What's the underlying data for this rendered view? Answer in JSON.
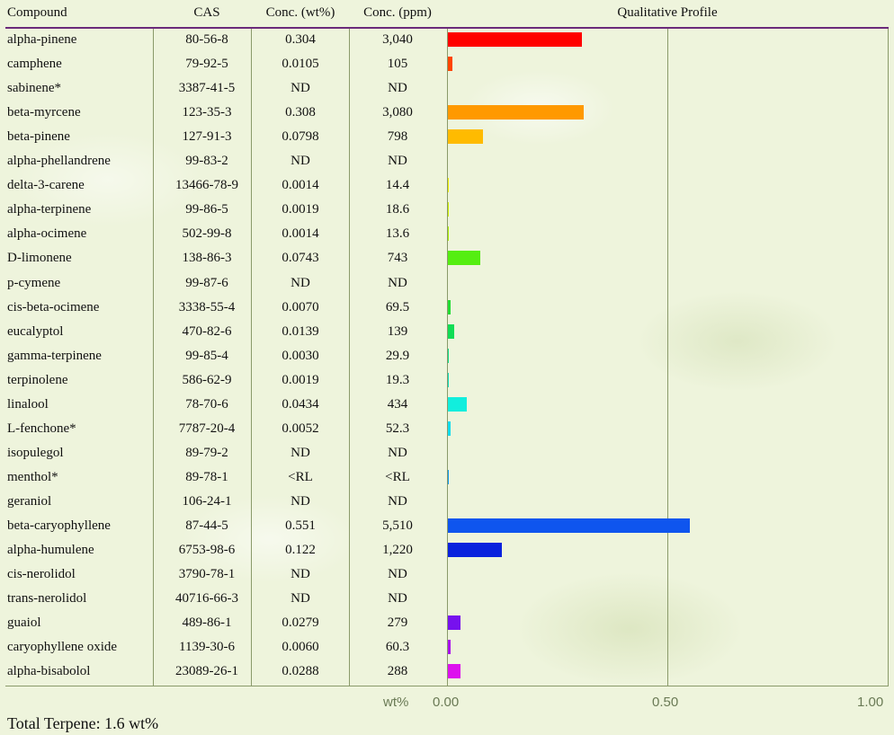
{
  "table": {
    "headers": {
      "compound": "Compound",
      "cas": "CAS",
      "conc_wt": "Conc. (wt%)",
      "conc_ppm": "Conc. (ppm)",
      "profile": "Qualitative Profile"
    },
    "rows": [
      {
        "compound": "alpha-pinene",
        "cas": "80-56-8",
        "wt": "0.304",
        "ppm": "3,040",
        "value": 0.304,
        "color": "#ff0000"
      },
      {
        "compound": "camphene",
        "cas": "79-92-5",
        "wt": "0.0105",
        "ppm": "105",
        "value": 0.0105,
        "color": "#ff4400"
      },
      {
        "compound": "sabinene*",
        "cas": "3387-41-5",
        "wt": "ND",
        "ppm": "ND",
        "value": 0,
        "color": "#ff6600"
      },
      {
        "compound": "beta-myrcene",
        "cas": "123-35-3",
        "wt": "0.308",
        "ppm": "3,080",
        "value": 0.308,
        "color": "#ff9900"
      },
      {
        "compound": "beta-pinene",
        "cas": "127-91-3",
        "wt": "0.0798",
        "ppm": "798",
        "value": 0.0798,
        "color": "#ffbb00"
      },
      {
        "compound": "alpha-phellandrene",
        "cas": "99-83-2",
        "wt": "ND",
        "ppm": "ND",
        "value": 0,
        "color": "#ffdd00"
      },
      {
        "compound": "delta-3-carene",
        "cas": "13466-78-9",
        "wt": "0.0014",
        "ppm": "14.4",
        "value": 0.0014,
        "color": "#eeee00"
      },
      {
        "compound": "alpha-terpinene",
        "cas": "99-86-5",
        "wt": "0.0019",
        "ppm": "18.6",
        "value": 0.0019,
        "color": "#ccee00"
      },
      {
        "compound": "alpha-ocimene",
        "cas": "502-99-8",
        "wt": "0.0014",
        "ppm": "13.6",
        "value": 0.0014,
        "color": "#aaee00"
      },
      {
        "compound": "D-limonene",
        "cas": "138-86-3",
        "wt": "0.0743",
        "ppm": "743",
        "value": 0.0743,
        "color": "#55ee11"
      },
      {
        "compound": "p-cymene",
        "cas": "99-87-6",
        "wt": "ND",
        "ppm": "ND",
        "value": 0,
        "color": "#33ee22"
      },
      {
        "compound": "cis-beta-ocimene",
        "cas": "3338-55-4",
        "wt": "0.0070",
        "ppm": "69.5",
        "value": 0.007,
        "color": "#22dd33"
      },
      {
        "compound": "eucalyptol",
        "cas": "470-82-6",
        "wt": "0.0139",
        "ppm": "139",
        "value": 0.0139,
        "color": "#11dd55"
      },
      {
        "compound": "gamma-terpinene",
        "cas": "99-85-4",
        "wt": "0.0030",
        "ppm": "29.9",
        "value": 0.003,
        "color": "#11dd88"
      },
      {
        "compound": "terpinolene",
        "cas": "586-62-9",
        "wt": "0.0019",
        "ppm": "19.3",
        "value": 0.0019,
        "color": "#11ddbb"
      },
      {
        "compound": "linalool",
        "cas": "78-70-6",
        "wt": "0.0434",
        "ppm": "434",
        "value": 0.0434,
        "color": "#11eedd"
      },
      {
        "compound": "L-fenchone*",
        "cas": "7787-20-4",
        "wt": "0.0052",
        "ppm": "52.3",
        "value": 0.0052,
        "color": "#11ddee"
      },
      {
        "compound": "isopulegol",
        "cas": "89-79-2",
        "wt": "ND",
        "ppm": "ND",
        "value": 0,
        "color": "#11bbee"
      },
      {
        "compound": "menthol*",
        "cas": "89-78-1",
        "wt": "<RL",
        "ppm": "<RL",
        "value": 0.0008,
        "color": "#1199ee"
      },
      {
        "compound": "geraniol",
        "cas": "106-24-1",
        "wt": "ND",
        "ppm": "ND",
        "value": 0,
        "color": "#1177ee"
      },
      {
        "compound": "beta-caryophyllene",
        "cas": "87-44-5",
        "wt": "0.551",
        "ppm": "5,510",
        "value": 0.551,
        "color": "#0f55ee"
      },
      {
        "compound": "alpha-humulene",
        "cas": "6753-98-6",
        "wt": "0.122",
        "ppm": "1,220",
        "value": 0.122,
        "color": "#0a22dd"
      },
      {
        "compound": "cis-nerolidol",
        "cas": "3790-78-1",
        "wt": "ND",
        "ppm": "ND",
        "value": 0,
        "color": "#3311dd"
      },
      {
        "compound": "trans-nerolidol",
        "cas": "40716-66-3",
        "wt": "ND",
        "ppm": "ND",
        "value": 0,
        "color": "#5511dd"
      },
      {
        "compound": "guaiol",
        "cas": "489-86-1",
        "wt": "0.0279",
        "ppm": "279",
        "value": 0.0279,
        "color": "#7711ee"
      },
      {
        "compound": "caryophyllene oxide",
        "cas": "1139-30-6",
        "wt": "0.0060",
        "ppm": "60.3",
        "value": 0.006,
        "color": "#aa11ee"
      },
      {
        "compound": "alpha-bisabolol",
        "cas": "23089-26-1",
        "wt": "0.0288",
        "ppm": "288",
        "value": 0.0288,
        "color": "#dd11ee"
      }
    ]
  },
  "chart_data": {
    "type": "bar",
    "orientation": "horizontal",
    "title": "Qualitative Profile",
    "xlabel": "wt%",
    "xlim": [
      0,
      1.0
    ],
    "xticks": [
      "0.00",
      "0.50",
      "1.00"
    ],
    "grid": true,
    "categories": [
      "alpha-pinene",
      "camphene",
      "sabinene*",
      "beta-myrcene",
      "beta-pinene",
      "alpha-phellandrene",
      "delta-3-carene",
      "alpha-terpinene",
      "alpha-ocimene",
      "D-limonene",
      "p-cymene",
      "cis-beta-ocimene",
      "eucalyptol",
      "gamma-terpinene",
      "terpinolene",
      "linalool",
      "L-fenchone*",
      "isopulegol",
      "menthol*",
      "geraniol",
      "beta-caryophyllene",
      "alpha-humulene",
      "cis-nerolidol",
      "trans-nerolidol",
      "guaiol",
      "caryophyllene oxide",
      "alpha-bisabolol"
    ],
    "values": [
      0.304,
      0.0105,
      0,
      0.308,
      0.0798,
      0,
      0.0014,
      0.0019,
      0.0014,
      0.0743,
      0,
      0.007,
      0.0139,
      0.003,
      0.0019,
      0.0434,
      0.0052,
      0,
      0.0008,
      0,
      0.551,
      0.122,
      0,
      0,
      0.0279,
      0.006,
      0.0288
    ]
  },
  "axis": {
    "unit": "wt%",
    "tick0": "0.00",
    "tick1": "0.50",
    "tick2": "1.00"
  },
  "colors": {
    "header_rule": "#6b2a7a",
    "grid": "#8a9a6a",
    "axis_text": "#6a7a55"
  },
  "footer": {
    "total": "Total Terpene: 1.6 wt%"
  }
}
